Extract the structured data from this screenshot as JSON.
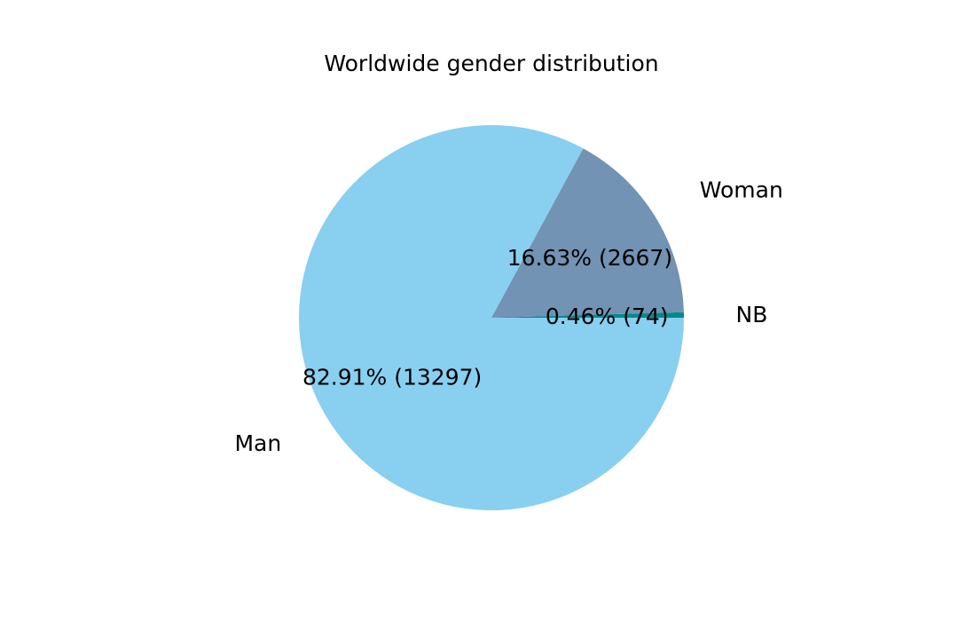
{
  "chart_data": {
    "type": "pie",
    "title": "Worldwide gender distribution",
    "slices": [
      {
        "label": "NB",
        "value": 74,
        "percent": 0.46,
        "autopct": "0.46%  (74)",
        "color": "#008b8b"
      },
      {
        "label": "Woman",
        "value": 2667,
        "percent": 16.63,
        "autopct": "16.63%  (2667)",
        "color": "#7293b3"
      },
      {
        "label": "Man",
        "value": 13297,
        "percent": 82.91,
        "autopct": "82.91%  (13297)",
        "color": "#89cff0"
      }
    ],
    "start_angle_deg": 0,
    "direction": "counterclockwise"
  }
}
